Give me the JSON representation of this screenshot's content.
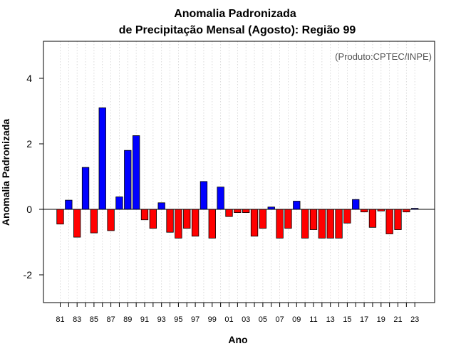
{
  "chart_data": {
    "type": "bar",
    "title_line1": "Anomalia Padronizada",
    "title_line2": "de Precipitação Mensal (Agosto): Região 99",
    "xlabel": "Ano",
    "ylabel": "Anomalia Padronizada",
    "annotation": "(Produto:CPTEC/INPE)",
    "ylim": [
      -2.9,
      5.15
    ],
    "yticks": [
      -2,
      0,
      2,
      4
    ],
    "ytick_labels": [
      "-2",
      "0",
      "2",
      "4"
    ],
    "xtick_labels": [
      "81",
      "83",
      "85",
      "87",
      "89",
      "91",
      "93",
      "95",
      "97",
      "99",
      "01",
      "03",
      "05",
      "07",
      "09",
      "11",
      "13",
      "15",
      "17",
      "19",
      "21",
      "23"
    ],
    "categories": [
      "1981",
      "1982",
      "1983",
      "1984",
      "1985",
      "1986",
      "1987",
      "1988",
      "1989",
      "1990",
      "1991",
      "1992",
      "1993",
      "1994",
      "1995",
      "1996",
      "1997",
      "1998",
      "1999",
      "2000",
      "2001",
      "2002",
      "2003",
      "2004",
      "2005",
      "2006",
      "2007",
      "2008",
      "2009",
      "2010",
      "2011",
      "2012",
      "2013",
      "2014",
      "2015",
      "2016",
      "2017",
      "2018",
      "2019",
      "2020",
      "2021",
      "2022",
      "2023"
    ],
    "values": [
      -0.45,
      0.28,
      -0.85,
      1.28,
      -0.72,
      3.1,
      -0.65,
      0.38,
      1.8,
      2.25,
      -0.32,
      -0.58,
      0.2,
      -0.7,
      -0.88,
      -0.58,
      -0.82,
      0.85,
      -0.88,
      0.68,
      -0.22,
      -0.1,
      -0.1,
      -0.82,
      -0.58,
      0.07,
      -0.88,
      -0.58,
      0.25,
      -0.88,
      -0.62,
      -0.88,
      -0.88,
      -0.88,
      -0.42,
      0.3,
      -0.08,
      -0.55,
      -0.05,
      -0.75,
      -0.62,
      -0.08,
      0.03
    ],
    "positive_color": "#0000ff",
    "negative_color": "#ff0000",
    "grid": true
  }
}
